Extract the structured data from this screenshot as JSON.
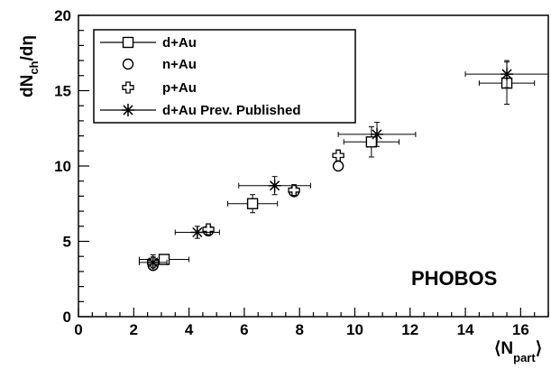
{
  "chart_data": {
    "type": "scatter",
    "title": "",
    "xlabel": "⟨N",
    "xlabel_sub": "part",
    "xlabel_close": "⟩",
    "ylabel": "dN",
    "ylabel_sub": "ch",
    "ylabel_tail": "/dη",
    "xlim": [
      0,
      17
    ],
    "ylim": [
      0,
      20
    ],
    "x_ticks": [
      0,
      2,
      4,
      6,
      8,
      10,
      12,
      14,
      16
    ],
    "y_ticks": [
      0,
      5,
      10,
      15,
      20
    ],
    "grid": false,
    "legend_position": "top-left",
    "annotation": "PHOBOS",
    "series": [
      {
        "name": "d+Au",
        "marker": "square",
        "points": [
          {
            "x": 3.1,
            "y": 3.8,
            "xerr": 0.9,
            "yerr": 0.3
          },
          {
            "x": 6.3,
            "y": 7.5,
            "xerr": 0.9,
            "yerr": 0.6
          },
          {
            "x": 10.6,
            "y": 11.6,
            "xerr": 1.0,
            "yerr": 1.0
          },
          {
            "x": 15.5,
            "y": 15.5,
            "xerr": 1.0,
            "yerr": 1.4
          }
        ]
      },
      {
        "name": "n+Au",
        "marker": "circle",
        "points": [
          {
            "x": 2.7,
            "y": 3.4,
            "xerr": 0,
            "yerr": 0
          },
          {
            "x": 4.7,
            "y": 5.7,
            "xerr": 0,
            "yerr": 0
          },
          {
            "x": 7.8,
            "y": 8.3,
            "xerr": 0,
            "yerr": 0
          },
          {
            "x": 9.4,
            "y": 10.0,
            "xerr": 0,
            "yerr": 0
          }
        ]
      },
      {
        "name": "p+Au",
        "marker": "cross",
        "points": [
          {
            "x": 2.7,
            "y": 3.6,
            "xerr": 0,
            "yerr": 0
          },
          {
            "x": 4.7,
            "y": 5.8,
            "xerr": 0,
            "yerr": 0
          },
          {
            "x": 7.8,
            "y": 8.4,
            "xerr": 0,
            "yerr": 0
          },
          {
            "x": 9.4,
            "y": 10.7,
            "xerr": 0,
            "yerr": 0
          }
        ]
      },
      {
        "name": "d+Au Prev. Published",
        "marker": "star",
        "points": [
          {
            "x": 2.7,
            "y": 3.6,
            "xerr": 0.5,
            "yerr": 0.5
          },
          {
            "x": 4.3,
            "y": 5.6,
            "xerr": 0.8,
            "yerr": 0.4
          },
          {
            "x": 7.1,
            "y": 8.7,
            "xerr": 1.3,
            "yerr": 0.6
          },
          {
            "x": 10.8,
            "y": 12.1,
            "xerr": 1.4,
            "yerr": 0.8
          },
          {
            "x": 15.5,
            "y": 16.1,
            "xerr": 1.5,
            "yerr": 0.9
          }
        ]
      }
    ]
  }
}
